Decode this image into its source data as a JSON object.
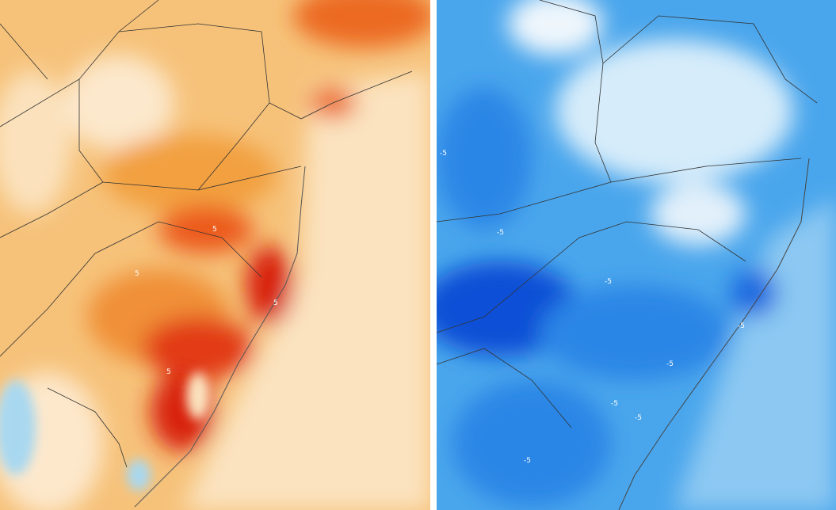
{
  "maps": {
    "left": {
      "palette": {
        "base": "#f6c27a",
        "light": "#fbe6c4",
        "mid": "#f2a040",
        "hot": "#ec5a1e",
        "hottest": "#d8200e",
        "cold": "#a8d8f0"
      },
      "contour_labels": [
        "5",
        "5",
        "5",
        "5"
      ]
    },
    "right": {
      "palette": {
        "base": "#4aa6ec",
        "light": "#d6ecfa",
        "mid": "#2b86e6",
        "deep": "#0a4fd6",
        "white": "#f4f9fd"
      },
      "contour_labels": [
        "-5",
        "-5",
        "-5",
        "-5",
        "-5",
        "-5",
        "-5",
        "-5"
      ]
    }
  }
}
